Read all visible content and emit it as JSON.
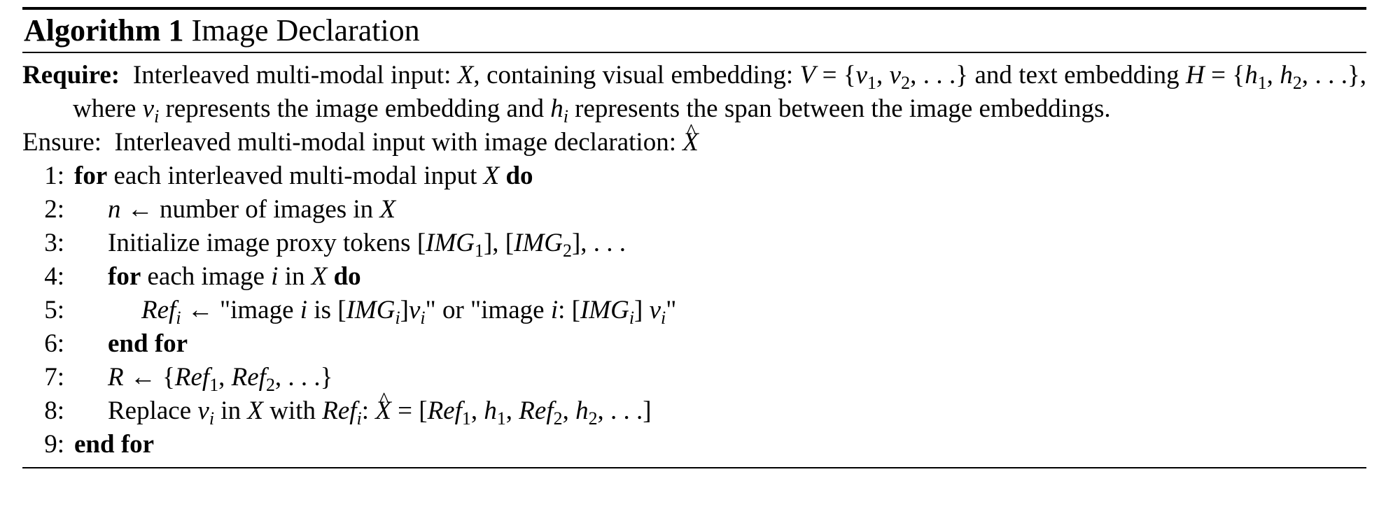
{
  "algorithm": {
    "number_label": "Algorithm 1",
    "name": "Image Declaration",
    "require_keyword": "Require:",
    "ensure_keyword": "Ensure:",
    "ensure_text": "Interleaved multi-modal input with image declaration:",
    "lines": [
      {
        "num": "1:",
        "kw": "for",
        "text": "each interleaved multi-modal input",
        "var": "X",
        "kw2": "do"
      },
      {
        "num": "2:",
        "text": "← number of images in"
      },
      {
        "num": "3:",
        "text": "Initialize image proxy tokens"
      },
      {
        "num": "4:",
        "kw": "for",
        "text": "each image",
        "var": "i",
        "mid": "in",
        "kw2": "do"
      },
      {
        "num": "5:",
        "text_a": "← \"image",
        "text_b": "is",
        "text_c": "\" or \"image",
        "text_d": ":"
      },
      {
        "num": "6:",
        "kw": "end for"
      },
      {
        "num": "7:",
        "text": "←"
      },
      {
        "num": "8:",
        "text_a": "Replace",
        "text_b": "in",
        "text_c": "with"
      },
      {
        "num": "9:",
        "kw": "end for"
      }
    ]
  }
}
